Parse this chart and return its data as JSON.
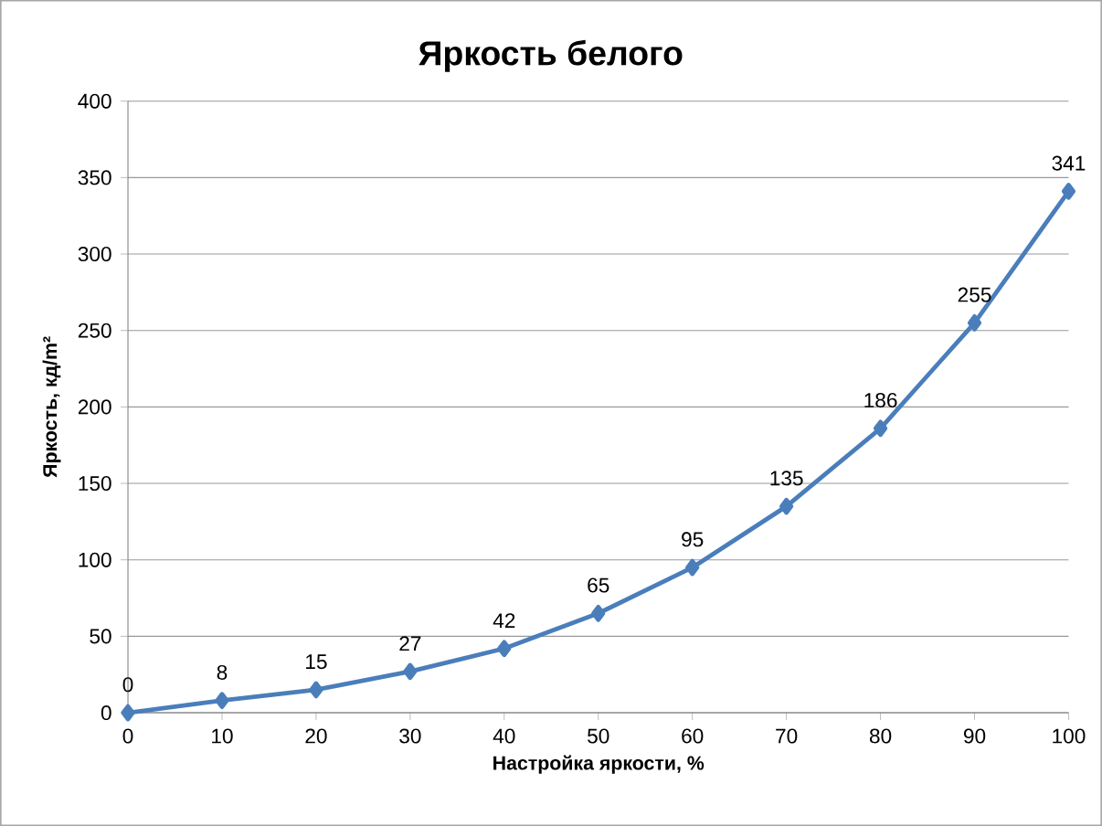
{
  "chart_data": {
    "type": "line",
    "title": "Яркость белого",
    "xlabel": "Настройка  яркости, %",
    "ylabel": "Яркость, кд/m²",
    "x": [
      0,
      10,
      20,
      30,
      40,
      50,
      60,
      70,
      80,
      90,
      100
    ],
    "series": [
      {
        "color": "#4a7ebb",
        "values": [
          0,
          8,
          15,
          27,
          42,
          65,
          95,
          135,
          186,
          255,
          341
        ]
      }
    ],
    "xlim": [
      0,
      100
    ],
    "ylim": [
      0,
      400
    ],
    "xticks": [
      0,
      10,
      20,
      30,
      40,
      50,
      60,
      70,
      80,
      90,
      100
    ],
    "yticks": [
      0,
      50,
      100,
      150,
      200,
      250,
      300,
      350,
      400
    ],
    "grid": "y",
    "marker": "diamond",
    "line_style": "solid",
    "data_labels": true
  }
}
